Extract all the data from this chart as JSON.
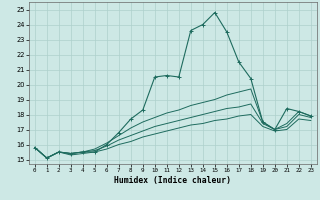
{
  "xlabel": "Humidex (Indice chaleur)",
  "bg_color": "#cde8e5",
  "grid_color": "#aed0cc",
  "line_color": "#1e6b5e",
  "xlim": [
    -0.5,
    23.5
  ],
  "ylim": [
    14.7,
    25.5
  ],
  "yticks": [
    15,
    16,
    17,
    18,
    19,
    20,
    21,
    22,
    23,
    24,
    25
  ],
  "xticks": [
    0,
    1,
    2,
    3,
    4,
    5,
    6,
    7,
    8,
    9,
    10,
    11,
    12,
    13,
    14,
    15,
    16,
    17,
    18,
    19,
    20,
    21,
    22,
    23
  ],
  "series1_y": [
    15.8,
    15.1,
    15.5,
    15.4,
    15.5,
    15.5,
    16.0,
    16.8,
    17.7,
    18.3,
    20.5,
    20.6,
    20.5,
    23.6,
    24.0,
    24.8,
    23.5,
    21.5,
    20.4,
    17.5,
    17.0,
    18.4,
    18.2,
    17.9
  ],
  "series2_y": [
    15.8,
    15.1,
    15.5,
    15.4,
    15.5,
    15.7,
    16.1,
    16.6,
    17.1,
    17.5,
    17.8,
    18.1,
    18.3,
    18.6,
    18.8,
    19.0,
    19.3,
    19.5,
    19.7,
    17.5,
    17.0,
    17.4,
    18.2,
    17.9
  ],
  "series3_y": [
    15.8,
    15.1,
    15.5,
    15.4,
    15.5,
    15.6,
    15.9,
    16.3,
    16.6,
    16.9,
    17.2,
    17.4,
    17.6,
    17.8,
    18.0,
    18.2,
    18.4,
    18.5,
    18.7,
    17.4,
    17.0,
    17.2,
    18.0,
    17.8
  ],
  "series4_y": [
    15.8,
    15.1,
    15.5,
    15.3,
    15.4,
    15.5,
    15.7,
    16.0,
    16.2,
    16.5,
    16.7,
    16.9,
    17.1,
    17.3,
    17.4,
    17.6,
    17.7,
    17.9,
    18.0,
    17.2,
    16.9,
    17.0,
    17.7,
    17.6
  ]
}
